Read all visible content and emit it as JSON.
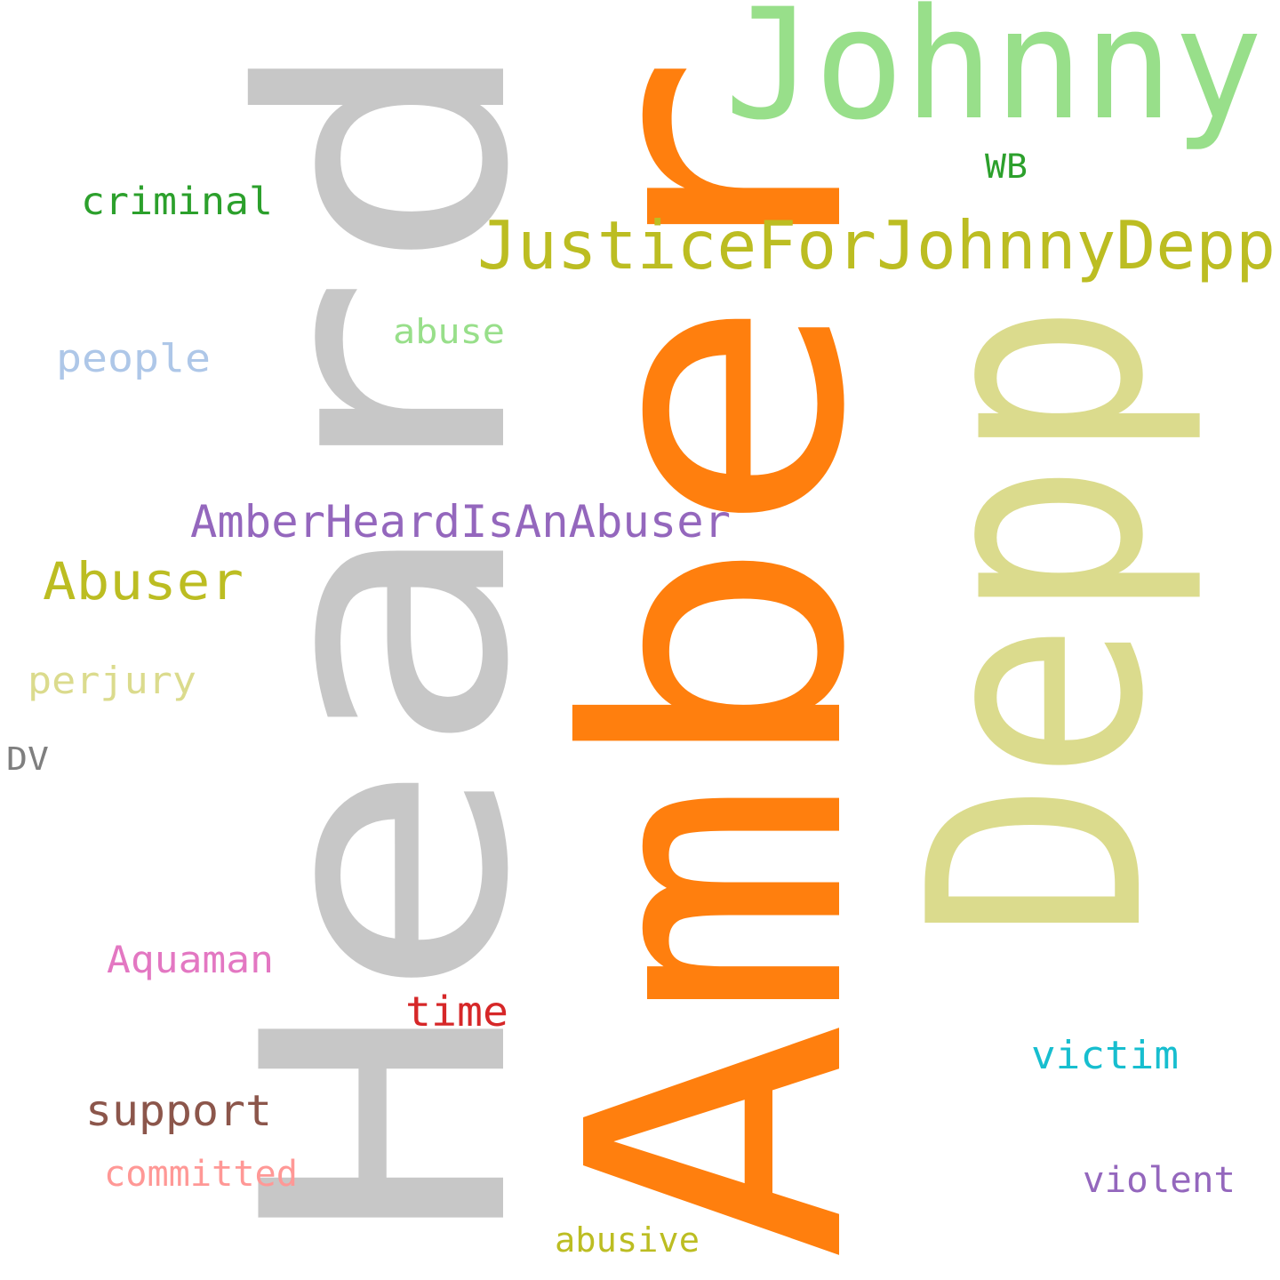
{
  "words": {
    "amber": {
      "text": "Amber",
      "color": "#ff7f0e"
    },
    "heard": {
      "text": "Heard",
      "color": "#c7c7c7"
    },
    "depp": {
      "text": "Depp",
      "color": "#dbdb8d"
    },
    "johnny": {
      "text": "Johnny",
      "color": "#98df8a"
    },
    "justice": {
      "text": "JusticeForJohnnyDepp",
      "color": "#bcbd22"
    },
    "heard_is": {
      "text": "AmberHeardIsAnAbuser",
      "color": "#9467bd"
    },
    "abuser": {
      "text": "Abuser",
      "color": "#bcbd22"
    },
    "criminal": {
      "text": "criminal",
      "color": "#2ca02c"
    },
    "wb": {
      "text": "WB",
      "color": "#2ca02c"
    },
    "abuse": {
      "text": "abuse",
      "color": "#98df8a"
    },
    "people": {
      "text": "people",
      "color": "#aec7e8"
    },
    "perjury": {
      "text": "perjury",
      "color": "#dbdb8d"
    },
    "dv": {
      "text": "DV",
      "color": "#7f7f7f"
    },
    "aquaman": {
      "text": "Aquaman",
      "color": "#e377c2"
    },
    "time": {
      "text": "time",
      "color": "#d62728"
    },
    "support": {
      "text": "support",
      "color": "#8c564b"
    },
    "committed": {
      "text": "committed",
      "color": "#ff9896"
    },
    "victim": {
      "text": "victim",
      "color": "#17becf"
    },
    "violent": {
      "text": "violent",
      "color": "#9467bd"
    },
    "abusive": {
      "text": "abusive",
      "color": "#bcbd22"
    }
  }
}
